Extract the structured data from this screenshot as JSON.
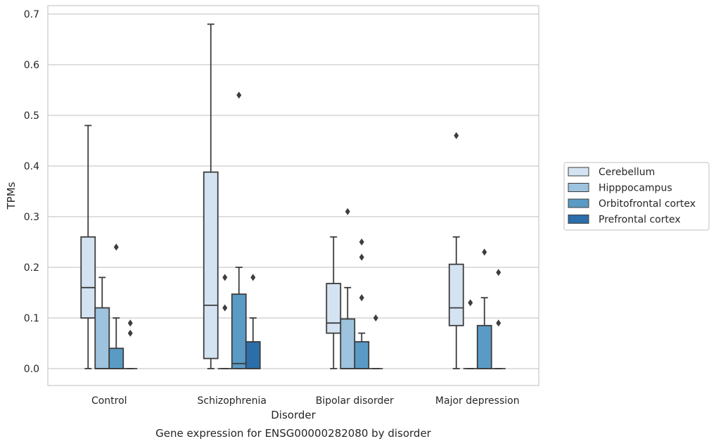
{
  "chart_data": {
    "type": "box",
    "xlabel": "Disorder",
    "ylabel": "TPMs",
    "caption": "Gene expression for ENSG00000282080 by disorder",
    "categories": [
      "Control",
      "Schizophrenia",
      "Bipolar disorder",
      "Major depression"
    ],
    "ylim": [
      -0.033,
      0.715
    ],
    "yticks": [
      0.0,
      0.1,
      0.2,
      0.3,
      0.4,
      0.5,
      0.6,
      0.7
    ],
    "ytick_labels": [
      "0.0",
      "0.1",
      "0.2",
      "0.3",
      "0.4",
      "0.5",
      "0.6",
      "0.7"
    ],
    "grid": true,
    "legend_position": "right",
    "series": [
      {
        "name": "Cerebellum",
        "color": "#d4e3f1",
        "boxes": [
          {
            "whisker_low": 0.0,
            "q1": 0.1,
            "median": 0.16,
            "q3": 0.26,
            "whisker_high": 0.48,
            "outliers": []
          },
          {
            "whisker_low": 0.0,
            "q1": 0.02,
            "median": 0.125,
            "q3": 0.388,
            "whisker_high": 0.68,
            "outliers": []
          },
          {
            "whisker_low": 0.0,
            "q1": 0.07,
            "median": 0.09,
            "q3": 0.168,
            "whisker_high": 0.26,
            "outliers": []
          },
          {
            "whisker_low": 0.0,
            "q1": 0.085,
            "median": 0.12,
            "q3": 0.206,
            "whisker_high": 0.26,
            "outliers": [
              0.46
            ]
          }
        ]
      },
      {
        "name": "Hipppocampus",
        "color": "#9dc3de",
        "boxes": [
          {
            "whisker_low": 0.0,
            "q1": 0.0,
            "median": 0.0,
            "q3": 0.12,
            "whisker_high": 0.18,
            "outliers": []
          },
          {
            "whisker_low": 0.0,
            "q1": 0.0,
            "median": 0.0,
            "q3": 0.0,
            "whisker_high": 0.0,
            "outliers": [
              0.18,
              0.12
            ]
          },
          {
            "whisker_low": 0.0,
            "q1": 0.0,
            "median": 0.0,
            "q3": 0.098,
            "whisker_high": 0.16,
            "outliers": [
              0.31
            ]
          },
          {
            "whisker_low": 0.0,
            "q1": 0.0,
            "median": 0.0,
            "q3": 0.0,
            "whisker_high": 0.0,
            "outliers": [
              0.13
            ]
          }
        ]
      },
      {
        "name": "Orbitofrontal cortex",
        "color": "#5a9bc6",
        "boxes": [
          {
            "whisker_low": 0.0,
            "q1": 0.0,
            "median": 0.0,
            "q3": 0.04,
            "whisker_high": 0.1,
            "outliers": [
              0.24
            ]
          },
          {
            "whisker_low": 0.0,
            "q1": 0.0,
            "median": 0.01,
            "q3": 0.147,
            "whisker_high": 0.2,
            "outliers": [
              0.54
            ]
          },
          {
            "whisker_low": 0.0,
            "q1": 0.0,
            "median": 0.0,
            "q3": 0.053,
            "whisker_high": 0.07,
            "outliers": [
              0.25,
              0.22,
              0.14
            ]
          },
          {
            "whisker_low": 0.0,
            "q1": 0.0,
            "median": 0.0,
            "q3": 0.085,
            "whisker_high": 0.14,
            "outliers": [
              0.23
            ]
          }
        ]
      },
      {
        "name": "Prefrontal cortex",
        "color": "#2b6ea9",
        "boxes": [
          {
            "whisker_low": 0.0,
            "q1": 0.0,
            "median": 0.0,
            "q3": 0.0,
            "whisker_high": 0.0,
            "outliers": [
              0.09,
              0.07
            ]
          },
          {
            "whisker_low": 0.0,
            "q1": 0.0,
            "median": 0.0,
            "q3": 0.053,
            "whisker_high": 0.1,
            "outliers": [
              0.18
            ]
          },
          {
            "whisker_low": 0.0,
            "q1": 0.0,
            "median": 0.0,
            "q3": 0.0,
            "whisker_high": 0.0,
            "outliers": [
              0.1
            ]
          },
          {
            "whisker_low": 0.0,
            "q1": 0.0,
            "median": 0.0,
            "q3": 0.0,
            "whisker_high": 0.0,
            "outliers": [
              0.19,
              0.09
            ]
          }
        ]
      }
    ]
  }
}
